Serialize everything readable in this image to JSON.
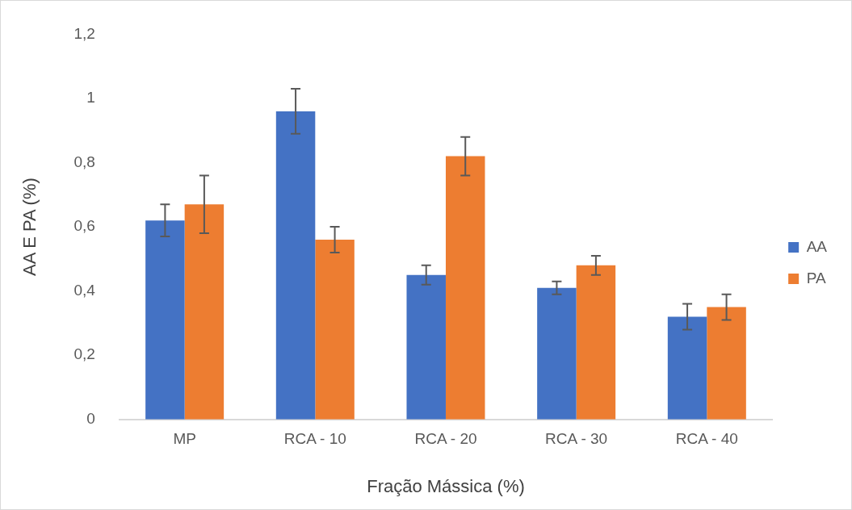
{
  "chart_data": {
    "type": "bar",
    "xlabel": "Fração Mássica (%)",
    "ylabel": "AA E PA (%)",
    "categories": [
      "MP",
      "RCA - 10",
      "RCA - 20",
      "RCA - 30",
      "RCA - 40"
    ],
    "series": [
      {
        "name": "AA",
        "color": "#4472c4",
        "values": [
          0.62,
          0.96,
          0.45,
          0.41,
          0.32
        ],
        "errors": [
          0.05,
          0.07,
          0.03,
          0.02,
          0.04
        ]
      },
      {
        "name": "PA",
        "color": "#ed7d31",
        "values": [
          0.67,
          0.56,
          0.82,
          0.48,
          0.35
        ],
        "errors": [
          0.09,
          0.04,
          0.06,
          0.03,
          0.04
        ]
      }
    ],
    "ylim": [
      0,
      1.2
    ],
    "yticks": [
      0,
      {
        "value": 0.2,
        "label": "0,2"
      },
      {
        "value": 0.4,
        "label": "0,4"
      },
      {
        "value": 0.6,
        "label": "0,6"
      },
      {
        "value": 0.8,
        "label": "0,8"
      },
      1,
      {
        "value": 1.2,
        "label": "1,2"
      }
    ],
    "grid": false,
    "legend": "right"
  }
}
